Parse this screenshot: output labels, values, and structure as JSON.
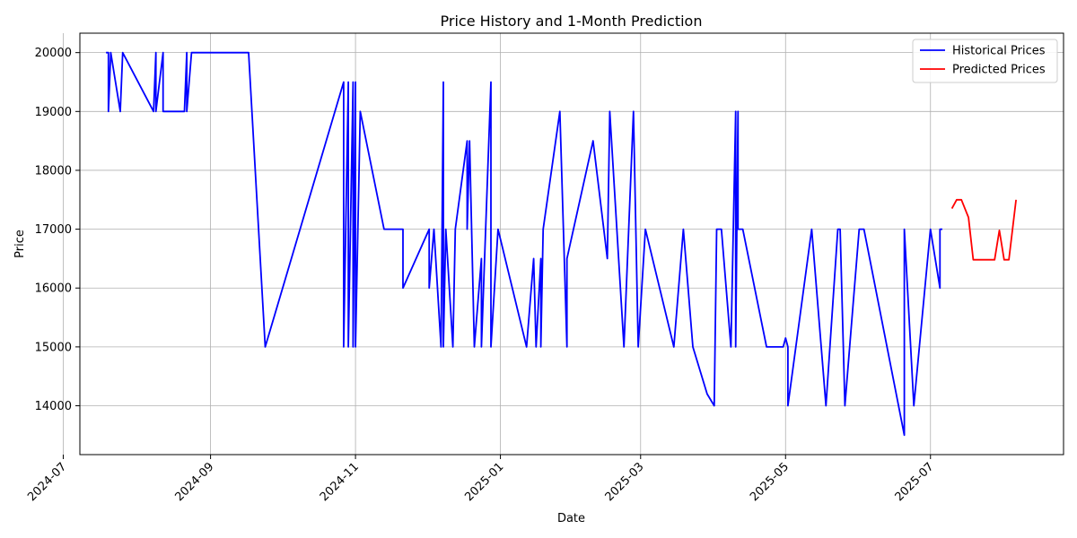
{
  "chart_data": {
    "type": "line",
    "title": "Price History and 1-Month Prediction",
    "xlabel": "Date",
    "ylabel": "Price",
    "x_range": [
      "2024-07-08",
      "2025-08-26"
    ],
    "ylim": [
      13170,
      20330
    ],
    "x_ticks": [
      "2024-07",
      "2024-09",
      "2024-11",
      "2025-01",
      "2025-03",
      "2025-05",
      "2025-07"
    ],
    "y_ticks": [
      14000,
      15000,
      16000,
      17000,
      18000,
      19000,
      20000
    ],
    "grid": true,
    "legend_position": "top-right",
    "series": [
      {
        "name": "Historical Prices",
        "color": "#0000ff",
        "points": [
          [
            "2024-07-19",
            20000
          ],
          [
            "2024-07-20",
            20000
          ],
          [
            "2024-07-20",
            19000
          ],
          [
            "2024-07-21",
            20000
          ],
          [
            "2024-07-25",
            19000
          ],
          [
            "2024-07-26",
            20000
          ],
          [
            "2024-08-08",
            19000
          ],
          [
            "2024-08-09",
            20000
          ],
          [
            "2024-08-09",
            19000
          ],
          [
            "2024-08-12",
            20000
          ],
          [
            "2024-08-12",
            19000
          ],
          [
            "2024-08-14",
            19000
          ],
          [
            "2024-08-21",
            19000
          ],
          [
            "2024-08-22",
            20000
          ],
          [
            "2024-08-22",
            19000
          ],
          [
            "2024-08-24",
            20000
          ],
          [
            "2024-09-17",
            20000
          ],
          [
            "2024-09-24",
            15000
          ],
          [
            "2024-10-27",
            19500
          ],
          [
            "2024-10-27",
            15000
          ],
          [
            "2024-10-29",
            19500
          ],
          [
            "2024-10-29",
            15000
          ],
          [
            "2024-10-31",
            19500
          ],
          [
            "2024-10-31",
            15000
          ],
          [
            "2024-11-01",
            19500
          ],
          [
            "2024-11-01",
            15000
          ],
          [
            "2024-11-03",
            19000
          ],
          [
            "2024-11-13",
            17000
          ],
          [
            "2024-11-21",
            17000
          ],
          [
            "2024-11-21",
            16000
          ],
          [
            "2024-12-02",
            17000
          ],
          [
            "2024-12-02",
            16000
          ],
          [
            "2024-12-04",
            17000
          ],
          [
            "2024-12-07",
            15000
          ],
          [
            "2024-12-08",
            19500
          ],
          [
            "2024-12-08",
            15000
          ],
          [
            "2024-12-09",
            17000
          ],
          [
            "2024-12-12",
            15000
          ],
          [
            "2024-12-13",
            17000
          ],
          [
            "2024-12-18",
            18500
          ],
          [
            "2024-12-18",
            17000
          ],
          [
            "2024-12-19",
            18500
          ],
          [
            "2024-12-21",
            15000
          ],
          [
            "2024-12-24",
            16500
          ],
          [
            "2024-12-24",
            15000
          ],
          [
            "2024-12-28",
            19500
          ],
          [
            "2024-12-28",
            15000
          ],
          [
            "2024-12-31",
            17000
          ],
          [
            "2025-01-12",
            15000
          ],
          [
            "2025-01-15",
            16500
          ],
          [
            "2025-01-16",
            15000
          ],
          [
            "2025-01-18",
            16500
          ],
          [
            "2025-01-18",
            15000
          ],
          [
            "2025-01-19",
            17000
          ],
          [
            "2025-01-26",
            19000
          ],
          [
            "2025-01-29",
            15000
          ],
          [
            "2025-01-29",
            16500
          ],
          [
            "2025-02-09",
            18500
          ],
          [
            "2025-02-15",
            16500
          ],
          [
            "2025-02-16",
            19000
          ],
          [
            "2025-02-22",
            15000
          ],
          [
            "2025-02-26",
            19000
          ],
          [
            "2025-02-28",
            15000
          ],
          [
            "2025-03-03",
            17000
          ],
          [
            "2025-03-15",
            15000
          ],
          [
            "2025-03-19",
            17000
          ],
          [
            "2025-03-23",
            15000
          ],
          [
            "2025-03-29",
            14200
          ],
          [
            "2025-04-01",
            14000
          ],
          [
            "2025-04-02",
            17000
          ],
          [
            "2025-04-04",
            17000
          ],
          [
            "2025-04-08",
            15000
          ],
          [
            "2025-04-10",
            19000
          ],
          [
            "2025-04-10",
            15000
          ],
          [
            "2025-04-11",
            19000
          ],
          [
            "2025-04-11",
            17000
          ],
          [
            "2025-04-13",
            17000
          ],
          [
            "2025-04-23",
            15000
          ],
          [
            "2025-04-30",
            15000
          ],
          [
            "2025-05-01",
            15150
          ],
          [
            "2025-05-02",
            15000
          ],
          [
            "2025-05-02",
            14000
          ],
          [
            "2025-05-12",
            17000
          ],
          [
            "2025-05-18",
            14000
          ],
          [
            "2025-05-23",
            17000
          ],
          [
            "2025-05-24",
            17000
          ],
          [
            "2025-05-26",
            14000
          ],
          [
            "2025-06-01",
            17000
          ],
          [
            "2025-06-03",
            17000
          ],
          [
            "2025-06-20",
            13500
          ],
          [
            "2025-06-20",
            17000
          ],
          [
            "2025-06-24",
            14000
          ],
          [
            "2025-07-01",
            17000
          ],
          [
            "2025-07-05",
            16000
          ],
          [
            "2025-07-05",
            17000
          ],
          [
            "2025-07-06",
            17000
          ]
        ]
      },
      {
        "name": "Predicted Prices",
        "color": "#ff0000",
        "points": [
          [
            "2025-07-10",
            17350
          ],
          [
            "2025-07-12",
            17500
          ],
          [
            "2025-07-14",
            17500
          ],
          [
            "2025-07-17",
            17200
          ],
          [
            "2025-07-19",
            16480
          ],
          [
            "2025-07-28",
            16480
          ],
          [
            "2025-07-30",
            16980
          ],
          [
            "2025-08-01",
            16480
          ],
          [
            "2025-08-03",
            16480
          ],
          [
            "2025-08-06",
            17500
          ]
        ]
      }
    ]
  }
}
